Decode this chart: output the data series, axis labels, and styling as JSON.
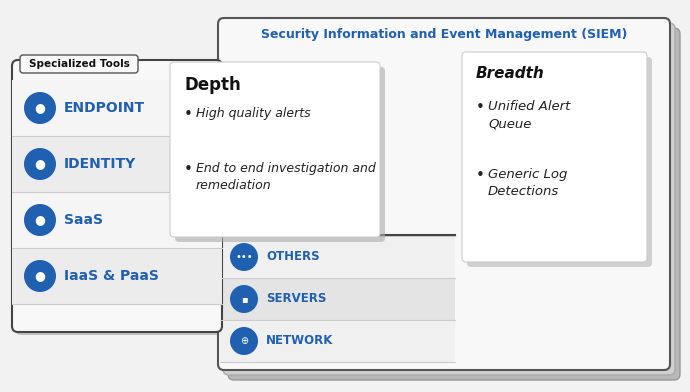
{
  "title_siem": "Security Information and Event Management (SIEM)",
  "title_color": "#2060b0",
  "specialized_label": "Specialized Tools",
  "left_items": [
    "ENDPOINT",
    "IDENTITY",
    "SaaS",
    "IaaS & PaaS"
  ],
  "bottom_items": [
    "NETWORK",
    "SERVERS",
    "OTHERS"
  ],
  "depth_title": "Depth",
  "depth_bullets": [
    "High quality alerts",
    "End to end investigation and\nremediation"
  ],
  "breadth_title": "Breadth",
  "breadth_bullets": [
    "Unified Alert\nQueue",
    "Generic Log\nDetections"
  ],
  "blue": "#2060b0",
  "white": "#ffffff",
  "light_gray": "#f0f0f0",
  "mid_gray": "#e0e0e0",
  "dark_gray": "#888888",
  "border_dark": "#333333",
  "row_bg1": "#f5f5f5",
  "row_bg2": "#e8e8e8",
  "siem_layers": [
    "#b0b0b0",
    "#c8c8c8",
    "#e0e0e0"
  ],
  "bg_color": "#f2f2f2"
}
